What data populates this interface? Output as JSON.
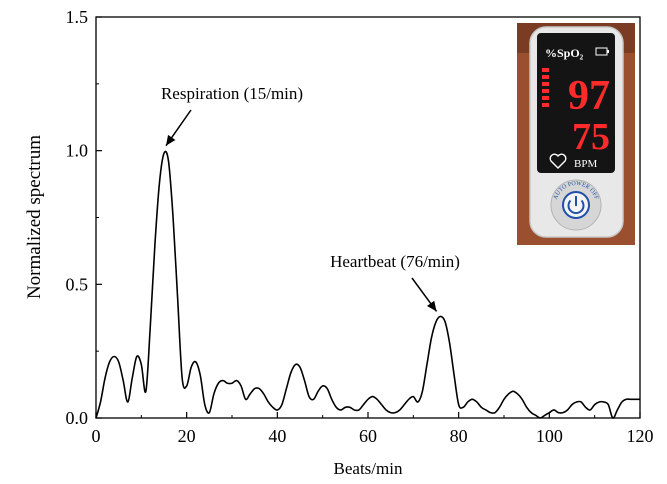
{
  "chart_data": {
    "type": "line",
    "xlabel": "Beats/min",
    "ylabel": "Normalized spectrum",
    "xlim": [
      0,
      120
    ],
    "ylim": [
      0,
      1.5
    ],
    "xticks": [
      "0",
      "20",
      "40",
      "60",
      "80",
      "100",
      "120"
    ],
    "yticks": [
      "0.0",
      "0.5",
      "1.0",
      "1.5"
    ],
    "grid": false,
    "legend": "none",
    "series": [
      {
        "color": "#000000",
        "x": [
          0,
          1,
          2,
          3,
          4,
          5,
          6,
          7,
          8,
          9,
          10,
          11,
          12,
          13,
          14,
          15,
          16,
          17,
          18,
          19,
          20,
          21,
          22,
          23,
          24,
          25,
          26,
          27,
          28,
          29,
          30,
          31,
          32,
          33,
          34,
          35,
          36,
          37,
          38,
          39,
          40,
          41,
          42,
          43,
          44,
          45,
          46,
          47,
          48,
          49,
          50,
          51,
          52,
          53,
          54,
          55,
          56,
          57,
          58,
          59,
          60,
          61,
          62,
          63,
          64,
          65,
          66,
          67,
          68,
          69,
          70,
          71,
          72,
          73,
          74,
          75,
          76,
          77,
          78,
          79,
          80,
          81,
          82,
          83,
          84,
          85,
          86,
          87,
          88,
          89,
          90,
          91,
          92,
          93,
          94,
          95,
          96,
          97,
          98,
          99,
          100,
          101,
          102,
          103,
          104,
          105,
          106,
          107,
          108,
          109,
          110,
          111,
          112,
          113,
          114,
          115,
          116,
          117,
          118,
          119,
          120
        ],
        "y": [
          0.0,
          0.06,
          0.15,
          0.21,
          0.23,
          0.21,
          0.14,
          0.06,
          0.15,
          0.23,
          0.2,
          0.1,
          0.35,
          0.65,
          0.88,
          0.99,
          0.96,
          0.75,
          0.45,
          0.15,
          0.12,
          0.19,
          0.21,
          0.16,
          0.05,
          0.02,
          0.09,
          0.13,
          0.14,
          0.13,
          0.13,
          0.14,
          0.12,
          0.07,
          0.09,
          0.11,
          0.11,
          0.09,
          0.06,
          0.04,
          0.03,
          0.05,
          0.11,
          0.17,
          0.2,
          0.19,
          0.14,
          0.08,
          0.07,
          0.1,
          0.12,
          0.11,
          0.07,
          0.04,
          0.03,
          0.04,
          0.04,
          0.03,
          0.03,
          0.05,
          0.07,
          0.08,
          0.07,
          0.05,
          0.03,
          0.02,
          0.02,
          0.03,
          0.05,
          0.07,
          0.08,
          0.06,
          0.1,
          0.2,
          0.3,
          0.36,
          0.38,
          0.36,
          0.28,
          0.16,
          0.05,
          0.04,
          0.06,
          0.07,
          0.06,
          0.04,
          0.03,
          0.02,
          0.02,
          0.04,
          0.07,
          0.09,
          0.1,
          0.09,
          0.07,
          0.04,
          0.02,
          0.01,
          0.0,
          0.01,
          0.02,
          0.03,
          0.02,
          0.02,
          0.03,
          0.05,
          0.06,
          0.06,
          0.04,
          0.03,
          0.05,
          0.06,
          0.06,
          0.05,
          0.0,
          0.03,
          0.06,
          0.07,
          0.07,
          0.07,
          0.07
        ]
      }
    ],
    "annotations": [
      {
        "text": "Respiration (15/min)",
        "x": 15,
        "y": 1.0
      },
      {
        "text": "Heartbeat (76/min)",
        "x": 76,
        "y": 0.38
      }
    ]
  },
  "inset": {
    "spo2_label": "%SpO₂",
    "spo2_value": "97",
    "bpm_label": "BPM",
    "bpm_value": "75",
    "button_text": "AUTO POWER OFF",
    "colors": {
      "display": "#ff2a2a",
      "body": "#e8e8e8",
      "screen": "#141414",
      "background": "#9a4f2f",
      "button": "#1f4fa8"
    },
    "icons": [
      "battery-icon",
      "heart-icon",
      "power-icon"
    ]
  }
}
